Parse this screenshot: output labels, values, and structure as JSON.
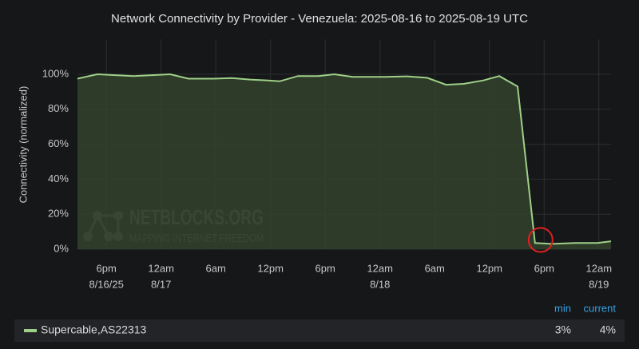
{
  "chart_data": {
    "type": "area",
    "title": "Network Connectivity by Provider - Venezuela: 2025-08-16 to 2025-08-19 UTC",
    "ylabel": "Connectivity (normalized)",
    "watermark": {
      "name": "NETBLOCKS.ORG",
      "tagline": "MAPPING INTERNET FREEDOM"
    },
    "x": [
      "2025-08-16T14:50Z",
      "2025-08-16T17:00Z",
      "2025-08-16T19:00Z",
      "2025-08-16T21:00Z",
      "2025-08-16T23:00Z",
      "2025-08-17T01:00Z",
      "2025-08-17T03:00Z",
      "2025-08-17T05:45Z",
      "2025-08-17T07:45Z",
      "2025-08-17T09:45Z",
      "2025-08-17T11:45Z",
      "2025-08-17T13:00Z",
      "2025-08-17T15:00Z",
      "2025-08-17T17:15Z",
      "2025-08-17T19:00Z",
      "2025-08-17T21:00Z",
      "2025-08-18T00:30Z",
      "2025-08-18T03:00Z",
      "2025-08-18T05:10Z",
      "2025-08-18T07:15Z",
      "2025-08-18T09:10Z",
      "2025-08-18T11:20Z",
      "2025-08-18T13:05Z",
      "2025-08-18T15:05Z",
      "2025-08-18T17:00Z",
      "2025-08-18T18:50Z",
      "2025-08-18T21:25Z",
      "2025-08-18T23:50Z",
      "2025-08-19T01:20Z"
    ],
    "series": [
      {
        "name": "Supercable,AS22313",
        "color": "#9fd089",
        "fill": "#33422c",
        "values": [
          97.5,
          100,
          99.5,
          99,
          99.5,
          100,
          97.5,
          97.5,
          97.8,
          97,
          96.5,
          96,
          99,
          99,
          100,
          98.5,
          98.5,
          98.8,
          98,
          94,
          94.5,
          96.5,
          99,
          93,
          3.5,
          3,
          3.5,
          3.5,
          4.5
        ],
        "stats": {
          "values": [
            3,
            4
          ],
          "value_labels": [
            "3%",
            "4%"
          ]
        }
      }
    ],
    "stat_headers": [
      "min",
      "current"
    ],
    "xlim": [
      "2025-08-16T14:50Z",
      "2025-08-19T01:20Z"
    ],
    "xticks": [
      {
        "value": "2025-08-16T18:00Z",
        "label": [
          "6pm",
          "8/16/25"
        ]
      },
      {
        "value": "2025-08-17T00:00Z",
        "label": [
          "12am",
          "8/17"
        ]
      },
      {
        "value": "2025-08-17T06:00Z",
        "label": [
          "6am"
        ]
      },
      {
        "value": "2025-08-17T12:00Z",
        "label": [
          "12pm"
        ]
      },
      {
        "value": "2025-08-17T18:00Z",
        "label": [
          "6pm"
        ]
      },
      {
        "value": "2025-08-18T00:00Z",
        "label": [
          "12am",
          "8/18"
        ]
      },
      {
        "value": "2025-08-18T06:00Z",
        "label": [
          "6am"
        ]
      },
      {
        "value": "2025-08-18T12:00Z",
        "label": [
          "12pm"
        ]
      },
      {
        "value": "2025-08-18T18:00Z",
        "label": [
          "6pm"
        ]
      },
      {
        "value": "2025-08-19T00:00Z",
        "label": [
          "12am",
          "8/19"
        ]
      }
    ],
    "ylim": [
      0,
      120
    ],
    "yticks": [
      {
        "value": 0,
        "label": "0%"
      },
      {
        "value": 20,
        "label": "20%"
      },
      {
        "value": 40,
        "label": "40%"
      },
      {
        "value": 60,
        "label": "60%"
      },
      {
        "value": 80,
        "label": "80%"
      },
      {
        "value": 100,
        "label": "100%"
      }
    ],
    "grid": true
  }
}
